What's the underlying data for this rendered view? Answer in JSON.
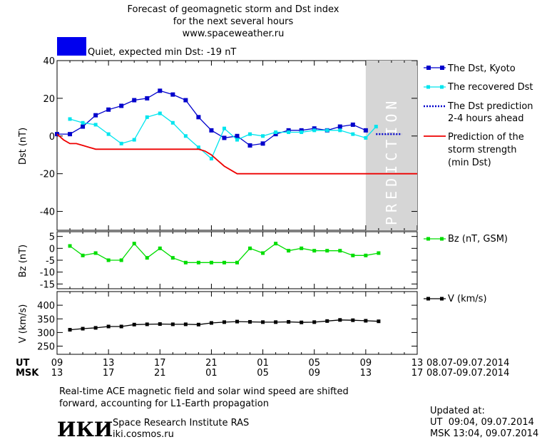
{
  "header": {
    "title_line1": "Forecast of geomagnetic storm and Dst index",
    "title_line2": "for the next several hours",
    "website": "www.spaceweather.ru",
    "status_text": "Quiet, expected min Dst: -19 nT",
    "status_color": "#0000ee"
  },
  "prediction_label": "PREDICTION",
  "legend": {
    "dst_kyoto": "The Dst, Kyoto",
    "dst_recovered": "The recovered Dst",
    "dst_prediction_1": "The Dst prediction",
    "dst_prediction_2": "2-4 hours ahead",
    "storm_1": "Prediction of the",
    "storm_2": "storm strength",
    "storm_3": "(min Dst)",
    "bz": "Bz (nT, GSM)",
    "v": "V (km/s)"
  },
  "time_axis": {
    "ut_label": "UT",
    "msk_label": "MSK",
    "ut_ticks": [
      "09",
      "13",
      "17",
      "21",
      "01",
      "05",
      "09",
      "13"
    ],
    "msk_ticks": [
      "13",
      "17",
      "21",
      "01",
      "05",
      "09",
      "13",
      "17"
    ],
    "date_range": "08.07-09.07.2014"
  },
  "footer": {
    "note_line1": "Real-time ACE magnetic field and solar wind speed are shifted",
    "note_line2": "forward, accounting for L1-Earth propagation",
    "logo_text": "ИКИ",
    "institute": "Space Research Institute RAS",
    "institute_url": "iki.cosmos.ru",
    "updated_label": "Updated at:",
    "updated_ut": "UT  09:04, 09.07.2014",
    "updated_msk": "MSK 13:04, 09.07.2014"
  },
  "chart_data": [
    {
      "type": "line",
      "ylabel": "Dst (nT)",
      "xlim": [
        0,
        28
      ],
      "ylim": [
        -50,
        40
      ],
      "yticks": [
        40,
        20,
        0,
        -20,
        -40
      ],
      "prediction_region": [
        24,
        28
      ],
      "series": [
        {
          "name": "The Dst, Kyoto",
          "color": "#0000cc",
          "x": [
            0,
            1,
            2,
            3,
            4,
            5,
            6,
            7,
            8,
            9,
            10,
            11,
            12,
            13,
            14,
            15,
            16,
            17,
            18,
            19,
            20,
            21,
            22,
            23,
            24
          ],
          "y": [
            1,
            1,
            5,
            11,
            14,
            16,
            19,
            20,
            24,
            22,
            19,
            10,
            3,
            -1,
            0,
            -5,
            -4,
            1,
            3,
            3,
            4,
            3,
            5,
            6,
            3
          ]
        },
        {
          "name": "The recovered Dst",
          "color": "#00e5ee",
          "x": [
            1,
            2,
            3,
            4,
            5,
            6,
            7,
            8,
            9,
            10,
            11,
            12,
            13,
            14,
            15,
            16,
            17,
            18,
            19,
            20,
            21,
            22,
            23,
            24,
            24.8
          ],
          "y": [
            9,
            7,
            6,
            1,
            -4,
            -2,
            10,
            12,
            7,
            0,
            -6,
            -12,
            4,
            -2,
            1,
            0,
            2,
            2,
            2,
            3,
            3,
            3,
            1,
            -1,
            5
          ]
        },
        {
          "name": "The Dst prediction",
          "color": "#0000cc",
          "x": [
            24.8,
            25.2,
            25.6,
            26,
            26.4,
            26.8
          ],
          "y": [
            1,
            1,
            1,
            1,
            1,
            1
          ]
        },
        {
          "name": "Prediction of the storm strength",
          "color": "#ee0000",
          "x": [
            0,
            0.5,
            1,
            1.5,
            2,
            3,
            4,
            5,
            6,
            7,
            8,
            9,
            10,
            11,
            11.5,
            12,
            12.5,
            13,
            14,
            16,
            18,
            20,
            22,
            24,
            26,
            28
          ],
          "y": [
            1,
            -2,
            -4,
            -4,
            -5,
            -7,
            -7,
            -7,
            -7,
            -7,
            -7,
            -7,
            -7,
            -7,
            -8,
            -10,
            -13,
            -16,
            -20,
            -20,
            -20,
            -20,
            -20,
            -20,
            -20,
            -20
          ]
        }
      ]
    },
    {
      "type": "line",
      "ylabel": "Bz (nT)",
      "xlim": [
        0,
        28
      ],
      "ylim": [
        -17,
        7
      ],
      "yticks": [
        5,
        0,
        -5,
        -10,
        -15
      ],
      "series": [
        {
          "name": "Bz (nT, GSM)",
          "color": "#00dd00",
          "x": [
            1,
            2,
            3,
            4,
            5,
            6,
            7,
            8,
            9,
            10,
            11,
            12,
            13,
            14,
            15,
            16,
            17,
            18,
            19,
            20,
            21,
            22,
            23,
            24,
            25
          ],
          "y": [
            1,
            -3,
            -2,
            -5,
            -5,
            2,
            -4,
            0,
            -4,
            -6,
            -6,
            -6,
            -6,
            -6,
            0,
            -2,
            2,
            -1,
            0,
            -1,
            -1,
            -1,
            -3,
            -3,
            -2
          ]
        }
      ]
    },
    {
      "type": "line",
      "ylabel": "V (km/s)",
      "xlim": [
        0,
        28
      ],
      "ylim": [
        220,
        450
      ],
      "yticks": [
        400,
        350,
        300,
        250
      ],
      "series": [
        {
          "name": "V (km/s)",
          "color": "#000000",
          "x": [
            1,
            2,
            3,
            4,
            5,
            6,
            7,
            8,
            9,
            10,
            11,
            12,
            13,
            14,
            15,
            16,
            17,
            18,
            19,
            20,
            21,
            22,
            23,
            24,
            25
          ],
          "y": [
            310,
            314,
            317,
            322,
            322,
            329,
            330,
            331,
            330,
            330,
            329,
            335,
            338,
            340,
            339,
            338,
            338,
            339,
            337,
            338,
            342,
            346,
            345,
            343,
            341
          ]
        }
      ]
    }
  ]
}
